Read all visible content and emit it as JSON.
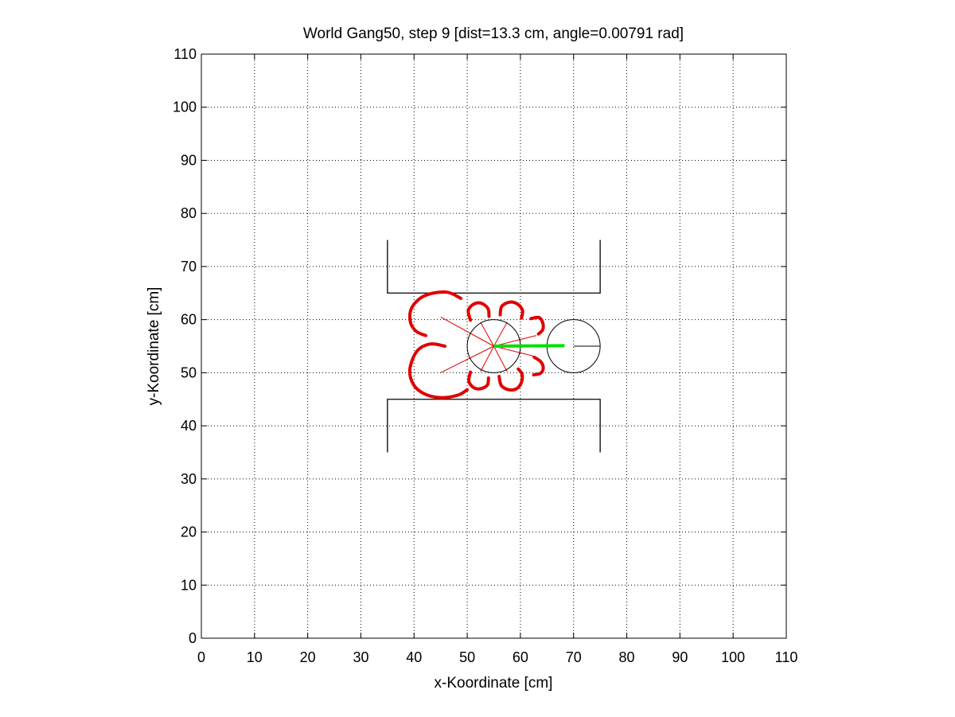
{
  "chart_data": {
    "type": "scatter",
    "title": "World Gang50, step 9 [dist=13.3 cm, angle=0.00791 rad]",
    "xlabel": "x-Koordinate [cm]",
    "ylabel": "y-Koordinate [cm]",
    "xlim": [
      0,
      110
    ],
    "ylim": [
      0,
      110
    ],
    "xticks": [
      0,
      10,
      20,
      30,
      40,
      50,
      60,
      70,
      80,
      90,
      100,
      110
    ],
    "yticks": [
      0,
      10,
      20,
      30,
      40,
      50,
      60,
      70,
      80,
      90,
      100,
      110
    ],
    "grid": true,
    "grid_style": "dotted",
    "walls": [
      {
        "name": "upper-wall",
        "points": [
          [
            35,
            75
          ],
          [
            35,
            65
          ],
          [
            75,
            65
          ],
          [
            75,
            75
          ]
        ]
      },
      {
        "name": "lower-wall",
        "points": [
          [
            35,
            35
          ],
          [
            35,
            45
          ],
          [
            75,
            45
          ],
          [
            75,
            35
          ]
        ]
      }
    ],
    "robots": [
      {
        "name": "robot-current",
        "center": [
          55,
          55
        ],
        "radius": 5
      },
      {
        "name": "robot-target",
        "center": [
          70,
          55
        ],
        "radius": 5,
        "heading_to": [
          75,
          55
        ]
      }
    ],
    "path_segment": {
      "from": [
        55,
        55
      ],
      "to": [
        68.3,
        55.1
      ],
      "color": "#00e000"
    },
    "sensor_color": "#e00000",
    "sensors": [
      {
        "name": "sensor-upper-left",
        "endpoint": [
          45,
          60.5
        ],
        "arc": [
          [
            48.8,
            64
          ],
          [
            46,
            65.2
          ],
          [
            42,
            64.5
          ],
          [
            39.6,
            62.3
          ],
          [
            39.3,
            59.6
          ],
          [
            40.4,
            57.8
          ],
          [
            42.2,
            57
          ]
        ]
      },
      {
        "name": "sensor-lower-left",
        "endpoint": [
          45,
          50
        ],
        "arc": [
          [
            45.8,
            55
          ],
          [
            43,
            55.4
          ],
          [
            40.5,
            54
          ],
          [
            39.2,
            50.5
          ],
          [
            40,
            47.6
          ],
          [
            42.2,
            45.9
          ],
          [
            45.2,
            45.3
          ],
          [
            48.3,
            45.8
          ],
          [
            50,
            46.8
          ]
        ]
      },
      {
        "name": "sensor-top-1",
        "endpoint": [
          52.5,
          59.5
        ],
        "arc": [
          [
            50.6,
            59.9
          ],
          [
            50.2,
            61.7
          ],
          [
            51.2,
            62.9
          ],
          [
            52.6,
            63.1
          ],
          [
            53.9,
            62.1
          ],
          [
            54.1,
            60.6
          ]
        ]
      },
      {
        "name": "sensor-top-2",
        "endpoint": [
          57.5,
          59.5
        ],
        "arc": [
          [
            56.2,
            60.9
          ],
          [
            56.5,
            62.5
          ],
          [
            58,
            63.3
          ],
          [
            59.5,
            62.9
          ],
          [
            60.4,
            61.7
          ],
          [
            60.2,
            60.3
          ]
        ]
      },
      {
        "name": "sensor-right-up",
        "endpoint": [
          63,
          57
        ],
        "arc": [
          [
            62,
            60.2
          ],
          [
            63.5,
            60.4
          ],
          [
            64.2,
            59.4
          ],
          [
            64.2,
            58.1
          ],
          [
            63.4,
            57.3
          ]
        ]
      },
      {
        "name": "sensor-right-down",
        "endpoint": [
          63,
          53
        ],
        "arc": [
          [
            62.6,
            52.9
          ],
          [
            63.8,
            52.1
          ],
          [
            64.3,
            50.9
          ],
          [
            63.8,
            49.9
          ],
          [
            62.5,
            49.6
          ]
        ]
      },
      {
        "name": "sensor-bottom-1",
        "endpoint": [
          52.5,
          50.2
        ],
        "arc": [
          [
            50.6,
            50.1
          ],
          [
            50.3,
            48.4
          ],
          [
            51.2,
            47.2
          ],
          [
            52.6,
            47.0
          ],
          [
            53.8,
            47.7
          ],
          [
            54.0,
            49.0
          ]
        ]
      },
      {
        "name": "sensor-bottom-2",
        "endpoint": [
          57.5,
          50.2
        ],
        "arc": [
          [
            56.0,
            49.3
          ],
          [
            56.4,
            47.6
          ],
          [
            57.8,
            46.8
          ],
          [
            59.3,
            47.0
          ],
          [
            60.2,
            48.2
          ],
          [
            60.3,
            49.7
          ],
          [
            59.6,
            50.7
          ]
        ]
      }
    ]
  }
}
